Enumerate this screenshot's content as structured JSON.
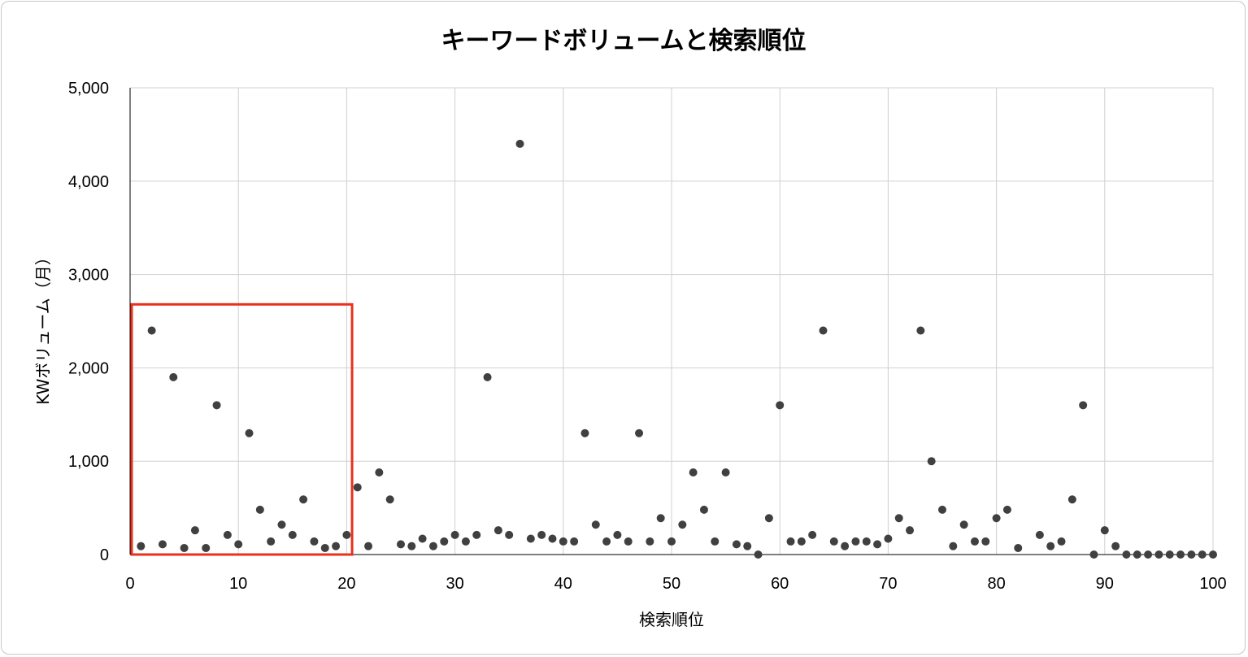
{
  "chart_data": {
    "type": "scatter",
    "title": "キーワードボリュームと検索順位",
    "xlabel": "検索順位",
    "ylabel": "KWボリューム（月）",
    "xlim": [
      0,
      100
    ],
    "ylim": [
      0,
      5000
    ],
    "x_ticks": [
      0,
      10,
      20,
      30,
      40,
      50,
      60,
      70,
      80,
      90,
      100
    ],
    "y_ticks": [
      0,
      1000,
      2000,
      3000,
      4000,
      5000
    ],
    "y_tick_labels": [
      "0",
      "1,000",
      "2,000",
      "3,000",
      "4,000",
      "5,000"
    ],
    "grid": true,
    "legend": "none",
    "marker_color": "#404040",
    "highlight_color": "#e8321e",
    "highlight_range": {
      "x": [
        0,
        20.5
      ],
      "y": [
        0,
        2680
      ]
    },
    "points": [
      [
        1,
        90
      ],
      [
        2,
        2400
      ],
      [
        3,
        110
      ],
      [
        4,
        1900
      ],
      [
        5,
        70
      ],
      [
        6,
        260
      ],
      [
        7,
        70
      ],
      [
        8,
        1600
      ],
      [
        9,
        210
      ],
      [
        10,
        110
      ],
      [
        11,
        1300
      ],
      [
        12,
        480
      ],
      [
        13,
        140
      ],
      [
        14,
        320
      ],
      [
        15,
        210
      ],
      [
        16,
        590
      ],
      [
        17,
        140
      ],
      [
        18,
        70
      ],
      [
        19,
        90
      ],
      [
        20,
        210
      ],
      [
        21,
        720
      ],
      [
        22,
        90
      ],
      [
        23,
        880
      ],
      [
        24,
        590
      ],
      [
        25,
        110
      ],
      [
        26,
        90
      ],
      [
        27,
        170
      ],
      [
        28,
        90
      ],
      [
        29,
        140
      ],
      [
        30,
        210
      ],
      [
        31,
        140
      ],
      [
        32,
        210
      ],
      [
        33,
        1900
      ],
      [
        34,
        260
      ],
      [
        35,
        210
      ],
      [
        36,
        4400
      ],
      [
        37,
        170
      ],
      [
        38,
        210
      ],
      [
        39,
        170
      ],
      [
        40,
        140
      ],
      [
        41,
        140
      ],
      [
        42,
        1300
      ],
      [
        43,
        320
      ],
      [
        44,
        140
      ],
      [
        45,
        210
      ],
      [
        46,
        140
      ],
      [
        47,
        1300
      ],
      [
        48,
        140
      ],
      [
        49,
        390
      ],
      [
        50,
        140
      ],
      [
        51,
        320
      ],
      [
        52,
        880
      ],
      [
        53,
        480
      ],
      [
        54,
        140
      ],
      [
        55,
        880
      ],
      [
        56,
        110
      ],
      [
        57,
        90
      ],
      [
        58,
        0
      ],
      [
        59,
        390
      ],
      [
        60,
        1600
      ],
      [
        61,
        140
      ],
      [
        62,
        140
      ],
      [
        63,
        210
      ],
      [
        64,
        2400
      ],
      [
        65,
        140
      ],
      [
        66,
        90
      ],
      [
        67,
        140
      ],
      [
        68,
        140
      ],
      [
        69,
        110
      ],
      [
        70,
        170
      ],
      [
        71,
        390
      ],
      [
        72,
        260
      ],
      [
        73,
        2400
      ],
      [
        74,
        1000
      ],
      [
        75,
        480
      ],
      [
        76,
        90
      ],
      [
        77,
        320
      ],
      [
        78,
        140
      ],
      [
        79,
        140
      ],
      [
        80,
        390
      ],
      [
        81,
        480
      ],
      [
        82,
        70
      ],
      [
        84,
        210
      ],
      [
        85,
        90
      ],
      [
        86,
        140
      ],
      [
        87,
        590
      ],
      [
        88,
        1600
      ],
      [
        89,
        0
      ],
      [
        90,
        260
      ],
      [
        91,
        90
      ],
      [
        92,
        0
      ],
      [
        93,
        0
      ],
      [
        94,
        0
      ],
      [
        95,
        0
      ],
      [
        96,
        0
      ],
      [
        97,
        0
      ],
      [
        98,
        0
      ],
      [
        99,
        0
      ],
      [
        100,
        0
      ]
    ]
  }
}
